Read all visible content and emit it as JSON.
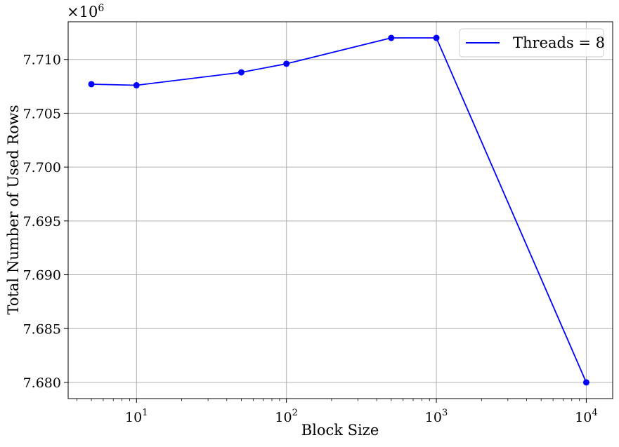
{
  "chart_data": {
    "type": "line",
    "xlabel": "Block Size",
    "ylabel": "Total Number of Used Rows",
    "x_scale": "log",
    "y_offset_label": "×10",
    "y_offset_exponent": "6",
    "xlim": [
      3.5,
      15000
    ],
    "ylim": [
      7.6785,
      7.7135
    ],
    "grid": true,
    "legend_position": "top-right",
    "x_ticks": [
      {
        "value": 10,
        "base": "10",
        "exp": "1"
      },
      {
        "value": 100,
        "base": "10",
        "exp": "2"
      },
      {
        "value": 1000,
        "base": "10",
        "exp": "3"
      },
      {
        "value": 10000,
        "base": "10",
        "exp": "4"
      }
    ],
    "y_ticks": [
      7.68,
      7.685,
      7.69,
      7.695,
      7.7,
      7.705,
      7.71
    ],
    "y_tick_labels": [
      "7.680",
      "7.685",
      "7.690",
      "7.695",
      "7.700",
      "7.705",
      "7.710"
    ],
    "series": [
      {
        "name": "Threads = 8",
        "color": "#0000ff",
        "x": [
          5,
          10,
          50,
          100,
          500,
          1000,
          10000
        ],
        "y": [
          7.7077,
          7.7076,
          7.7088,
          7.7096,
          7.712,
          7.712,
          7.68
        ]
      }
    ]
  }
}
